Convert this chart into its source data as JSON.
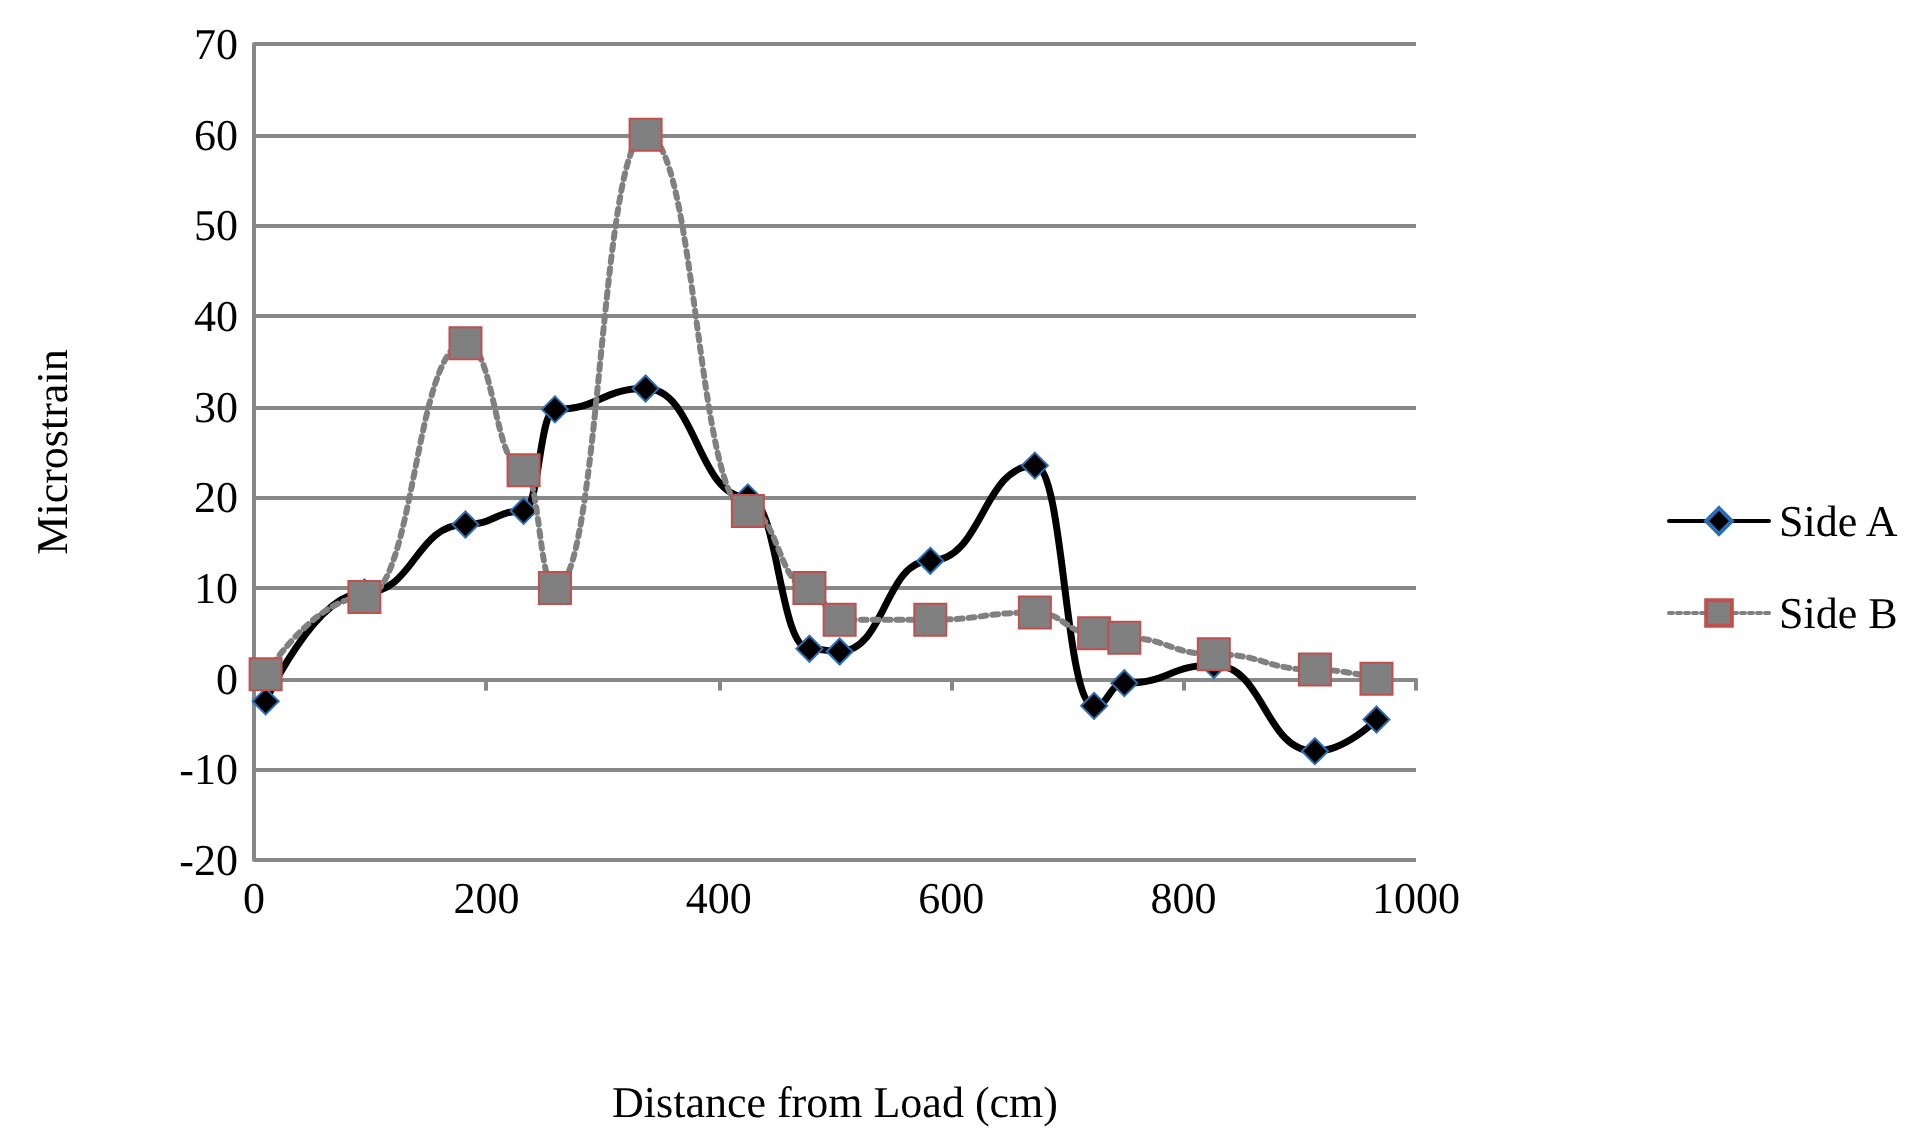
{
  "chart_data": {
    "type": "line",
    "xlabel": "Distance from Load (cm)",
    "ylabel": "Microstrain",
    "xlim": [
      0,
      1000
    ],
    "xticks": [
      0,
      200,
      400,
      600,
      800,
      1000
    ],
    "ylim": [
      -20,
      70
    ],
    "yticks": [
      -20,
      -10,
      0,
      10,
      20,
      30,
      40,
      50,
      60,
      70
    ],
    "grid": "y",
    "legend": "right",
    "x": [
      10,
      95,
      182,
      232,
      259,
      337,
      425,
      478,
      504,
      582,
      672,
      723,
      749,
      826,
      913,
      966
    ],
    "series": [
      {
        "name": "Side A",
        "color": "#000000",
        "marker": "diamond",
        "line_style": "solid",
        "values": [
          -2.5,
          9.5,
          17,
          18.5,
          29.7,
          32,
          20,
          3.3,
          3,
          13,
          23.5,
          -3,
          -0.5,
          1.5,
          -8,
          -4.5
        ]
      },
      {
        "name": "Side B",
        "color": "#808080",
        "marker": "square",
        "line_style": "dotted",
        "values": [
          0.5,
          9,
          37,
          23,
          10,
          60,
          18.5,
          10,
          6.5,
          6.5,
          7.3,
          5,
          4.5,
          2.7,
          1,
          0
        ]
      }
    ]
  }
}
